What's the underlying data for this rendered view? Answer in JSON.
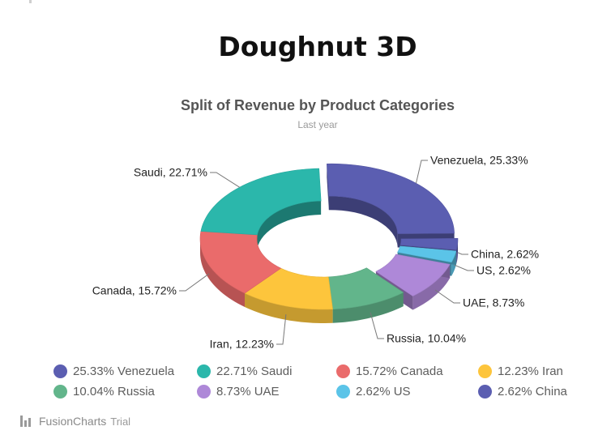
{
  "page": {
    "title": "Doughnut 3D"
  },
  "chart_data": {
    "type": "pie",
    "variant": "doughnut-3d",
    "title": "Split of Revenue by Product Categories",
    "subtitle": "Last year",
    "legend_position": "bottom",
    "slices": [
      {
        "label": "Venezuela",
        "value": 25.33,
        "label_text": "Venezuela, 25.33%",
        "legend_text": "25.33% Venezuela",
        "color": "#5b5eb1",
        "sliced": true
      },
      {
        "label": "China",
        "value": 2.62,
        "label_text": "China, 2.62%",
        "legend_text": "2.62% China",
        "color": "#5b5eb1",
        "sliced": true
      },
      {
        "label": "US",
        "value": 2.62,
        "label_text": "US, 2.62%",
        "legend_text": "2.62% US",
        "color": "#5bc4e8",
        "sliced": true
      },
      {
        "label": "UAE",
        "value": 8.73,
        "label_text": "UAE, 8.73%",
        "legend_text": "8.73% UAE",
        "color": "#ae88d8",
        "sliced": true
      },
      {
        "label": "Russia",
        "value": 10.04,
        "label_text": "Russia, 10.04%",
        "legend_text": "10.04% Russia",
        "color": "#62b58b",
        "sliced": false
      },
      {
        "label": "Iran",
        "value": 12.23,
        "label_text": "Iran, 12.23%",
        "legend_text": "12.23% Iran",
        "color": "#fdc53c",
        "sliced": false
      },
      {
        "label": "Canada",
        "value": 15.72,
        "label_text": "Canada, 15.72%",
        "legend_text": "15.72% Canada",
        "color": "#ea6b6b",
        "sliced": false
      },
      {
        "label": "Saudi",
        "value": 22.71,
        "label_text": "Saudi, 22.71%",
        "legend_text": "22.71% Saudi",
        "color": "#2bb7ab",
        "sliced": false
      }
    ],
    "legend_order": [
      "Venezuela",
      "Saudi",
      "Canada",
      "Iran",
      "Russia",
      "UAE",
      "US",
      "China"
    ]
  },
  "branding": {
    "name": "FusionCharts",
    "suffix": "Trial",
    "icon": "bar-chart-icon"
  }
}
